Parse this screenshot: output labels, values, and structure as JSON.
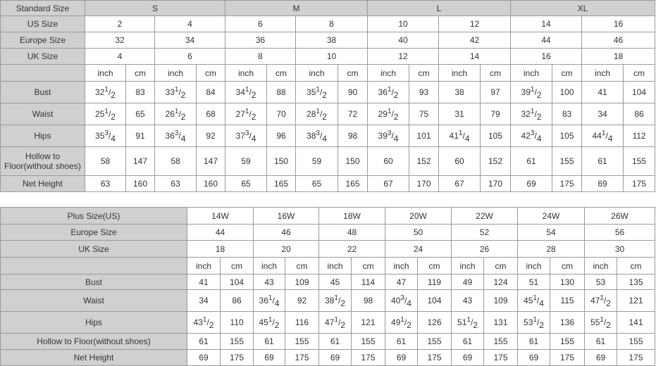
{
  "standard": {
    "header_label": "Standard Size",
    "groups": [
      "S",
      "M",
      "L",
      "XL"
    ],
    "us_size": {
      "label": "US Size",
      "values": [
        "2",
        "4",
        "6",
        "8",
        "10",
        "12",
        "14",
        "16"
      ]
    },
    "europe_size": {
      "label": "Europe Size",
      "values": [
        "32",
        "34",
        "36",
        "38",
        "40",
        "42",
        "44",
        "46"
      ]
    },
    "uk_size": {
      "label": "UK Size",
      "values": [
        "4",
        "6",
        "8",
        "10",
        "12",
        "14",
        "16",
        "18"
      ]
    },
    "units": [
      "inch",
      "cm"
    ],
    "measurements": [
      {
        "label": "Bust",
        "values": [
          [
            "32",
            "1",
            "2"
          ],
          "83",
          [
            "33",
            "1",
            "2"
          ],
          "84",
          [
            "34",
            "1",
            "2"
          ],
          "88",
          [
            "35",
            "1",
            "2"
          ],
          "90",
          [
            "36",
            "1",
            "2"
          ],
          "93",
          "38",
          "97",
          [
            "39",
            "1",
            "2"
          ],
          "100",
          "41",
          "104"
        ]
      },
      {
        "label": "Waist",
        "values": [
          [
            "25",
            "1",
            "2"
          ],
          "65",
          [
            "26",
            "1",
            "2"
          ],
          "68",
          [
            "27",
            "1",
            "2"
          ],
          "70",
          [
            "28",
            "1",
            "2"
          ],
          "72",
          [
            "29",
            "1",
            "2"
          ],
          "75",
          "31",
          "79",
          [
            "32",
            "1",
            "2"
          ],
          "83",
          "34",
          "86"
        ]
      },
      {
        "label": "Hips",
        "values": [
          [
            "35",
            "3",
            "4"
          ],
          "91",
          [
            "36",
            "3",
            "4"
          ],
          "92",
          [
            "37",
            "3",
            "4"
          ],
          "96",
          [
            "38",
            "3",
            "4"
          ],
          "98",
          [
            "39",
            "3",
            "4"
          ],
          "101",
          [
            "41",
            "1",
            "4"
          ],
          "105",
          [
            "42",
            "3",
            "4"
          ],
          "105",
          [
            "44",
            "1",
            "4"
          ],
          "112"
        ]
      },
      {
        "label": "Hollow to Floor(without shoes)",
        "values": [
          "58",
          "147",
          "58",
          "147",
          "59",
          "150",
          "59",
          "150",
          "60",
          "152",
          "60",
          "152",
          "61",
          "155",
          "61",
          "155"
        ]
      },
      {
        "label": "Net Height",
        "values": [
          "63",
          "160",
          "63",
          "160",
          "65",
          "165",
          "65",
          "165",
          "67",
          "170",
          "67",
          "170",
          "69",
          "175",
          "69",
          "175"
        ]
      }
    ]
  },
  "plus": {
    "header_label": "Plus Size(US)",
    "sizes": [
      "14W",
      "16W",
      "18W",
      "20W",
      "22W",
      "24W",
      "26W"
    ],
    "europe_size": {
      "label": "Europe Size",
      "values": [
        "44",
        "46",
        "48",
        "50",
        "52",
        "54",
        "56"
      ]
    },
    "uk_size": {
      "label": "UK Size",
      "values": [
        "18",
        "20",
        "22",
        "24",
        "26",
        "28",
        "30"
      ]
    },
    "units": [
      "inch",
      "cm"
    ],
    "measurements": [
      {
        "label": "Bust",
        "values": [
          "41",
          "104",
          "43",
          "109",
          "45",
          "114",
          "47",
          "119",
          "49",
          "124",
          "51",
          "130",
          "53",
          "135"
        ]
      },
      {
        "label": "Waist",
        "values": [
          "34",
          "86",
          [
            "36",
            "1",
            "4"
          ],
          "92",
          [
            "38",
            "1",
            "2"
          ],
          "98",
          [
            "40",
            "3",
            "4"
          ],
          "104",
          "43",
          "109",
          [
            "45",
            "1",
            "4"
          ],
          "115",
          [
            "47",
            "1",
            "2"
          ],
          "121"
        ]
      },
      {
        "label": "Hips",
        "values": [
          [
            "43",
            "1",
            "2"
          ],
          "110",
          [
            "45",
            "1",
            "2"
          ],
          "116",
          [
            "47",
            "1",
            "2"
          ],
          "121",
          [
            "49",
            "1",
            "2"
          ],
          "126",
          [
            "51",
            "1",
            "2"
          ],
          "131",
          [
            "53",
            "1",
            "2"
          ],
          "136",
          [
            "55",
            "1",
            "2"
          ],
          "141"
        ]
      },
      {
        "label": "Hollow to Floor(without shoes)",
        "values": [
          "61",
          "155",
          "61",
          "155",
          "61",
          "155",
          "61",
          "155",
          "61",
          "155",
          "61",
          "155",
          "61",
          "155"
        ]
      },
      {
        "label": "Net Height",
        "values": [
          "69",
          "175",
          "69",
          "175",
          "69",
          "175",
          "69",
          "175",
          "69",
          "175",
          "69",
          "175",
          "69",
          "175"
        ]
      }
    ]
  }
}
